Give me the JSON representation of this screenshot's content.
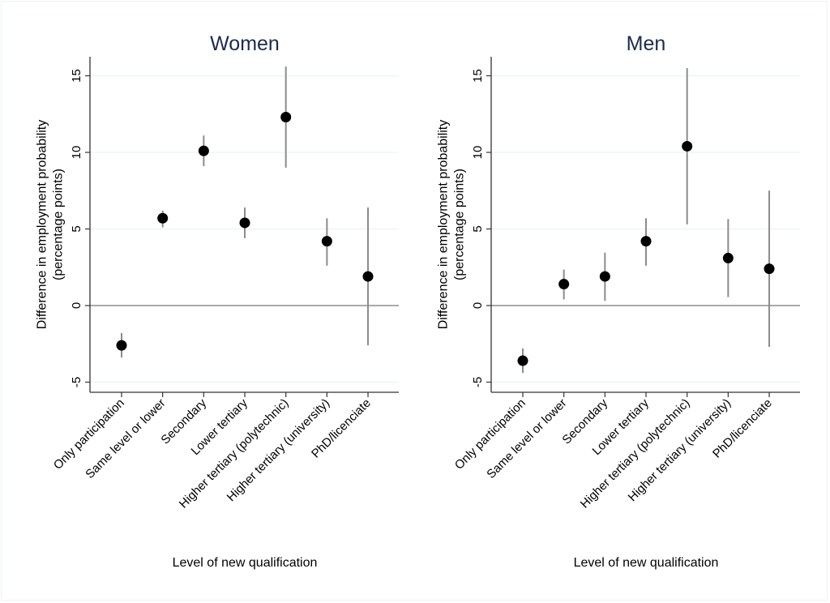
{
  "chart_data": [
    {
      "type": "scatter",
      "subtype": "point-estimate-with-confidence-intervals",
      "title": "Women",
      "xlabel": "Level of new qualification",
      "ylabel": "Difference in employment probability\n(percentage points)",
      "ylabel_lines": [
        "Difference in employment probability",
        "(percentage points)"
      ],
      "ylim": [
        -5.7,
        16.3
      ],
      "yticks": [
        -5,
        0,
        5,
        10,
        15
      ],
      "ytick_labels": [
        "-5",
        "0",
        "5",
        "10",
        "15"
      ],
      "grid": true,
      "reference_line": 0,
      "categories": [
        "Only participation",
        "Same level or lower",
        "Secondary",
        "Lower tertiary",
        "Higher tertiary (polytechnic)",
        "Higher tertiary (university)",
        "PhD/licenciate"
      ],
      "values": [
        -2.6,
        5.7,
        10.1,
        5.4,
        12.3,
        4.2,
        1.9
      ],
      "ci_lower": [
        -3.4,
        5.1,
        9.1,
        4.4,
        9.0,
        2.6,
        -2.6
      ],
      "ci_upper": [
        -1.8,
        6.2,
        11.1,
        6.4,
        15.6,
        5.7,
        6.4
      ]
    },
    {
      "type": "scatter",
      "subtype": "point-estimate-with-confidence-intervals",
      "title": "Men",
      "xlabel": "Level of new qualification",
      "ylabel": "Difference in employment probability\n(percentage points)",
      "ylabel_lines": [
        "Difference in employment probability",
        "(percentage points)"
      ],
      "ylim": [
        -5.7,
        16.3
      ],
      "yticks": [
        -5,
        0,
        5,
        10,
        15
      ],
      "ytick_labels": [
        "-5",
        "0",
        "5",
        "10",
        "15"
      ],
      "grid": true,
      "reference_line": 0,
      "categories": [
        "Only participation",
        "Same level or lower",
        "Secondary",
        "Lower tertiary",
        "Higher tertiary (polytechnic)",
        "Higher tertiary (university)",
        "PhD/licenciate"
      ],
      "values": [
        -3.6,
        1.4,
        1.9,
        4.2,
        10.4,
        3.1,
        2.4
      ],
      "ci_lower": [
        -4.4,
        0.4,
        0.3,
        2.6,
        5.3,
        0.55,
        -2.7
      ],
      "ci_upper": [
        -2.8,
        2.35,
        3.45,
        5.7,
        15.5,
        5.65,
        7.5
      ]
    }
  ],
  "colors": {
    "title": "#1c2b4d",
    "marker": "#000000",
    "ci_line": "#8c8c8c",
    "grid": "#eaf2f3",
    "axis": "#333333",
    "reference_line": "#777777"
  }
}
